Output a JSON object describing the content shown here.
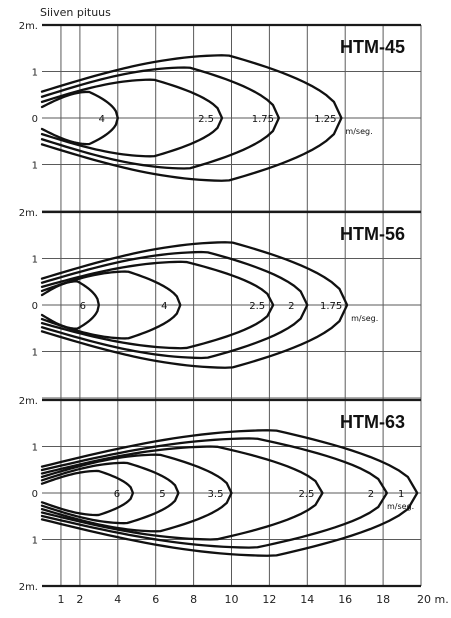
{
  "title": "Siiven pituus",
  "chart_data": {
    "type": "line",
    "xlabel": "",
    "ylabel": "",
    "x_unit": "m.",
    "y_unit": "m.",
    "xlim": [
      0,
      20
    ],
    "x_ticks": [
      1,
      2,
      4,
      6,
      8,
      10,
      12,
      14,
      16,
      18,
      20
    ],
    "x_tick_labels": [
      "1",
      "2",
      "4",
      "6",
      "8",
      "10",
      "12",
      "14",
      "16",
      "18",
      "20 m."
    ],
    "grid": true,
    "panels": [
      {
        "name": "HTM-45",
        "unit_label": "m/seg.",
        "y_tick_labels": [
          "2m.",
          "1",
          "0",
          "1"
        ],
        "series": [
          {
            "label": "4",
            "throw_m": 4
          },
          {
            "label": "2.5",
            "throw_m": 9.5
          },
          {
            "label": "1.75",
            "throw_m": 12.5
          },
          {
            "label": "1.25",
            "throw_m": 15.8
          }
        ]
      },
      {
        "name": "HTM-56",
        "unit_label": "m/seg.",
        "y_tick_labels": [
          "2m.",
          "1",
          "0",
          "1"
        ],
        "series": [
          {
            "label": "6",
            "throw_m": 3
          },
          {
            "label": "4",
            "throw_m": 7.3
          },
          {
            "label": "2.5",
            "throw_m": 12.2
          },
          {
            "label": "2",
            "throw_m": 14
          },
          {
            "label": "1.75",
            "throw_m": 16.1
          }
        ]
      },
      {
        "name": "HTM-63",
        "unit_label": "m/seg.",
        "y_tick_labels": [
          "2m.",
          "1",
          "0",
          "1",
          "2m."
        ],
        "series": [
          {
            "label": "6",
            "throw_m": 4.8
          },
          {
            "label": "5",
            "throw_m": 7.2
          },
          {
            "label": "3.5",
            "throw_m": 10
          },
          {
            "label": "2.5",
            "throw_m": 14.8
          },
          {
            "label": "2",
            "throw_m": 18.2
          },
          {
            "label": "1",
            "throw_m": 19.8
          }
        ]
      }
    ]
  }
}
